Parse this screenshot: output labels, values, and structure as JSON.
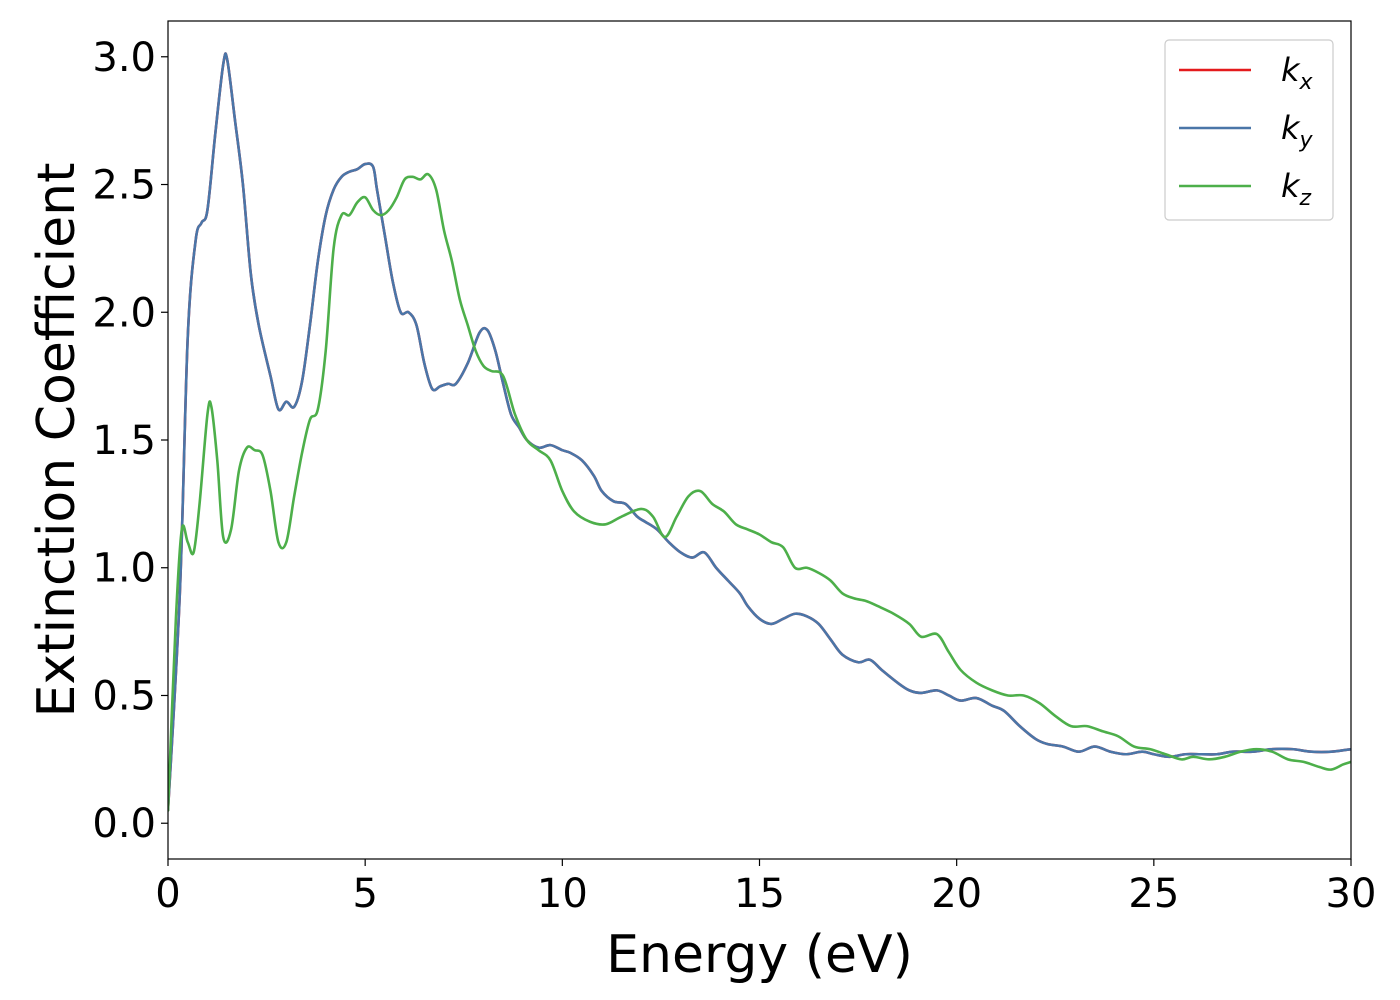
{
  "chart_data": {
    "type": "line",
    "xlabel": "Energy (eV)",
    "ylabel": "Extinction Coefficient",
    "xlim": [
      0,
      30
    ],
    "ylim": [
      -0.14,
      3.14
    ],
    "xticks": [
      0,
      5,
      10,
      15,
      20,
      25,
      30
    ],
    "xtick_labels": [
      "0",
      "5",
      "10",
      "15",
      "20",
      "25",
      "30"
    ],
    "yticks": [
      0.0,
      0.5,
      1.0,
      1.5,
      2.0,
      2.5,
      3.0
    ],
    "ytick_labels": [
      "0.0",
      "0.5",
      "1.0",
      "1.5",
      "2.0",
      "2.5",
      "3.0"
    ],
    "grid": false,
    "legend_position": "top-right",
    "series": [
      {
        "name": "k",
        "subscript": "x",
        "color": "#e41a1c",
        "x": [
          0,
          0.3,
          0.5,
          0.7,
          0.85,
          1.0,
          1.2,
          1.4,
          1.5,
          1.7,
          1.9,
          2.1,
          2.3,
          2.6,
          2.8,
          3.0,
          3.2,
          3.4,
          3.6,
          3.8,
          4.0,
          4.2,
          4.4,
          4.6,
          4.8,
          5.0,
          5.2,
          5.3,
          5.5,
          5.7,
          5.9,
          6.1,
          6.3,
          6.5,
          6.7,
          6.9,
          7.1,
          7.3,
          7.6,
          7.9,
          8.1,
          8.3,
          8.5,
          8.7,
          8.9,
          9.1,
          9.4,
          9.7,
          10.0,
          10.2,
          10.5,
          10.8,
          11.0,
          11.3,
          11.6,
          11.9,
          12.1,
          12.4,
          12.7,
          13.0,
          13.3,
          13.6,
          13.9,
          14.2,
          14.5,
          14.7,
          15.0,
          15.3,
          15.6,
          15.9,
          16.2,
          16.5,
          16.8,
          17.1,
          17.5,
          17.8,
          18.1,
          18.5,
          18.8,
          19.1,
          19.5,
          19.8,
          20.1,
          20.5,
          20.9,
          21.2,
          21.6,
          22.0,
          22.3,
          22.7,
          23.1,
          23.5,
          23.9,
          24.3,
          24.7,
          25.0,
          25.4,
          25.8,
          26.2,
          26.6,
          27.0,
          27.5,
          28.0,
          28.5,
          29.0,
          29.5,
          30.0
        ],
        "y": [
          0.05,
          0.9,
          1.9,
          2.28,
          2.35,
          2.4,
          2.7,
          2.97,
          2.99,
          2.75,
          2.5,
          2.15,
          1.95,
          1.75,
          1.62,
          1.65,
          1.63,
          1.73,
          1.95,
          2.2,
          2.38,
          2.48,
          2.53,
          2.55,
          2.56,
          2.58,
          2.57,
          2.48,
          2.3,
          2.12,
          2.0,
          2.0,
          1.95,
          1.8,
          1.7,
          1.71,
          1.72,
          1.72,
          1.8,
          1.92,
          1.93,
          1.85,
          1.72,
          1.6,
          1.55,
          1.5,
          1.47,
          1.48,
          1.46,
          1.45,
          1.42,
          1.36,
          1.3,
          1.26,
          1.25,
          1.2,
          1.18,
          1.15,
          1.1,
          1.06,
          1.04,
          1.06,
          1.0,
          0.95,
          0.9,
          0.85,
          0.8,
          0.78,
          0.8,
          0.82,
          0.81,
          0.78,
          0.72,
          0.66,
          0.63,
          0.64,
          0.6,
          0.55,
          0.52,
          0.51,
          0.52,
          0.5,
          0.48,
          0.49,
          0.46,
          0.44,
          0.38,
          0.33,
          0.31,
          0.3,
          0.28,
          0.3,
          0.28,
          0.27,
          0.28,
          0.27,
          0.26,
          0.27,
          0.27,
          0.27,
          0.28,
          0.28,
          0.29,
          0.29,
          0.28,
          0.28,
          0.29
        ]
      },
      {
        "name": "k",
        "subscript": "y",
        "color": "#4a76a8",
        "x": [
          0,
          0.3,
          0.5,
          0.7,
          0.85,
          1.0,
          1.2,
          1.4,
          1.5,
          1.7,
          1.9,
          2.1,
          2.3,
          2.6,
          2.8,
          3.0,
          3.2,
          3.4,
          3.6,
          3.8,
          4.0,
          4.2,
          4.4,
          4.6,
          4.8,
          5.0,
          5.2,
          5.3,
          5.5,
          5.7,
          5.9,
          6.1,
          6.3,
          6.5,
          6.7,
          6.9,
          7.1,
          7.3,
          7.6,
          7.9,
          8.1,
          8.3,
          8.5,
          8.7,
          8.9,
          9.1,
          9.4,
          9.7,
          10.0,
          10.2,
          10.5,
          10.8,
          11.0,
          11.3,
          11.6,
          11.9,
          12.1,
          12.4,
          12.7,
          13.0,
          13.3,
          13.6,
          13.9,
          14.2,
          14.5,
          14.7,
          15.0,
          15.3,
          15.6,
          15.9,
          16.2,
          16.5,
          16.8,
          17.1,
          17.5,
          17.8,
          18.1,
          18.5,
          18.8,
          19.1,
          19.5,
          19.8,
          20.1,
          20.5,
          20.9,
          21.2,
          21.6,
          22.0,
          22.3,
          22.7,
          23.1,
          23.5,
          23.9,
          24.3,
          24.7,
          25.0,
          25.4,
          25.8,
          26.2,
          26.6,
          27.0,
          27.5,
          28.0,
          28.5,
          29.0,
          29.5,
          30.0
        ],
        "y": [
          0.05,
          0.9,
          1.9,
          2.28,
          2.35,
          2.4,
          2.7,
          2.97,
          2.99,
          2.75,
          2.5,
          2.15,
          1.95,
          1.75,
          1.62,
          1.65,
          1.63,
          1.73,
          1.95,
          2.2,
          2.38,
          2.48,
          2.53,
          2.55,
          2.56,
          2.58,
          2.57,
          2.48,
          2.3,
          2.12,
          2.0,
          2.0,
          1.95,
          1.8,
          1.7,
          1.71,
          1.72,
          1.72,
          1.8,
          1.92,
          1.93,
          1.85,
          1.72,
          1.6,
          1.55,
          1.5,
          1.47,
          1.48,
          1.46,
          1.45,
          1.42,
          1.36,
          1.3,
          1.26,
          1.25,
          1.2,
          1.18,
          1.15,
          1.1,
          1.06,
          1.04,
          1.06,
          1.0,
          0.95,
          0.9,
          0.85,
          0.8,
          0.78,
          0.8,
          0.82,
          0.81,
          0.78,
          0.72,
          0.66,
          0.63,
          0.64,
          0.6,
          0.55,
          0.52,
          0.51,
          0.52,
          0.5,
          0.48,
          0.49,
          0.46,
          0.44,
          0.38,
          0.33,
          0.31,
          0.3,
          0.28,
          0.3,
          0.28,
          0.27,
          0.28,
          0.27,
          0.26,
          0.27,
          0.27,
          0.27,
          0.28,
          0.28,
          0.29,
          0.29,
          0.28,
          0.28,
          0.29
        ]
      },
      {
        "name": "k",
        "subscript": "z",
        "color": "#4daf4a",
        "x": [
          0,
          0.2,
          0.35,
          0.5,
          0.65,
          0.8,
          1.0,
          1.1,
          1.25,
          1.4,
          1.6,
          1.8,
          2.0,
          2.2,
          2.4,
          2.6,
          2.8,
          3.0,
          3.2,
          3.4,
          3.6,
          3.8,
          4.0,
          4.2,
          4.4,
          4.6,
          4.8,
          5.0,
          5.2,
          5.4,
          5.6,
          5.8,
          6.0,
          6.2,
          6.4,
          6.6,
          6.8,
          7.0,
          7.2,
          7.4,
          7.6,
          7.8,
          8.0,
          8.2,
          8.5,
          8.8,
          9.1,
          9.4,
          9.7,
          10.0,
          10.3,
          10.7,
          11.1,
          11.5,
          12.0,
          12.3,
          12.6,
          12.9,
          13.2,
          13.5,
          13.8,
          14.1,
          14.4,
          14.7,
          15.0,
          15.3,
          15.6,
          15.9,
          16.2,
          16.5,
          16.8,
          17.1,
          17.4,
          17.7,
          18.0,
          18.4,
          18.8,
          19.1,
          19.5,
          19.8,
          20.1,
          20.5,
          20.9,
          21.3,
          21.7,
          22.1,
          22.5,
          22.9,
          23.3,
          23.7,
          24.1,
          24.5,
          24.9,
          25.3,
          25.7,
          26.0,
          26.4,
          26.8,
          27.2,
          27.6,
          28.0,
          28.4,
          28.8,
          29.2,
          29.5,
          29.8,
          30.0
        ],
        "y": [
          0.05,
          0.8,
          1.15,
          1.1,
          1.06,
          1.25,
          1.6,
          1.63,
          1.42,
          1.12,
          1.15,
          1.38,
          1.47,
          1.46,
          1.44,
          1.3,
          1.1,
          1.1,
          1.28,
          1.45,
          1.58,
          1.62,
          1.85,
          2.25,
          2.38,
          2.38,
          2.43,
          2.45,
          2.4,
          2.38,
          2.4,
          2.45,
          2.52,
          2.53,
          2.52,
          2.54,
          2.48,
          2.32,
          2.2,
          2.05,
          1.95,
          1.85,
          1.79,
          1.77,
          1.75,
          1.6,
          1.5,
          1.46,
          1.42,
          1.3,
          1.22,
          1.18,
          1.17,
          1.2,
          1.23,
          1.2,
          1.12,
          1.2,
          1.28,
          1.3,
          1.25,
          1.22,
          1.17,
          1.15,
          1.13,
          1.1,
          1.08,
          1.0,
          1.0,
          0.98,
          0.95,
          0.9,
          0.88,
          0.87,
          0.85,
          0.82,
          0.78,
          0.73,
          0.74,
          0.67,
          0.6,
          0.55,
          0.52,
          0.5,
          0.5,
          0.47,
          0.42,
          0.38,
          0.38,
          0.36,
          0.34,
          0.3,
          0.29,
          0.27,
          0.25,
          0.26,
          0.25,
          0.26,
          0.28,
          0.29,
          0.28,
          0.25,
          0.24,
          0.22,
          0.21,
          0.23,
          0.24
        ]
      }
    ]
  }
}
